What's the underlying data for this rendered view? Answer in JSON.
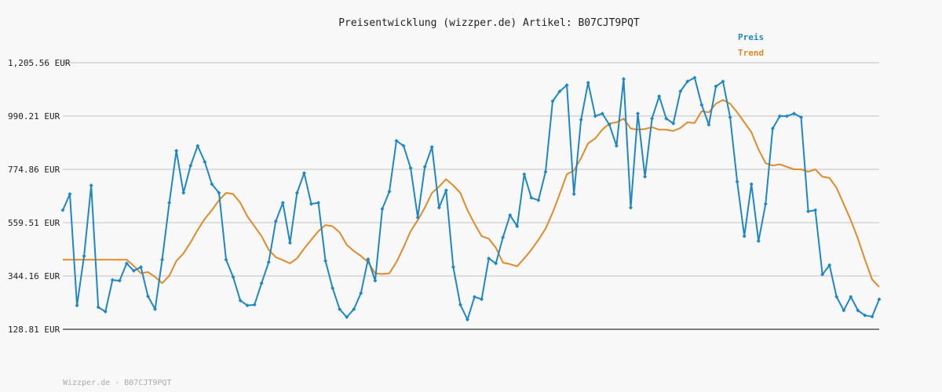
{
  "chart_data": {
    "type": "line",
    "title": "Preisentwicklung (wizzper.de) Artikel: B07CJT9PQT",
    "footer": "Wizzper.de - B07CJT9PQT",
    "ylim": [
      128.81,
      1205.56
    ],
    "y_ticks": [
      "1,205.56 EUR",
      "990.21 EUR",
      "774.86 EUR",
      "559.51 EUR",
      "344.16 EUR",
      "128.81 EUR"
    ],
    "y_tick_values": [
      1205.56,
      990.21,
      774.86,
      559.51,
      344.16,
      128.81
    ],
    "grid": true,
    "legend_position": "top-right",
    "colors": {
      "preis": "#1f87c4",
      "trend": "#e08b2a",
      "grid": "#dddddd",
      "axis": "#555555"
    },
    "series": [
      {
        "name": "Preis",
        "values": [
          610,
          675,
          225,
          425,
          710,
          218,
          200,
          328,
          325,
          395,
          365,
          380,
          262,
          210,
          410,
          640,
          850,
          680,
          790,
          870,
          805,
          715,
          680,
          410,
          340,
          245,
          225,
          228,
          315,
          400,
          565,
          640,
          478,
          680,
          760,
          635,
          640,
          405,
          295,
          210,
          178,
          210,
          275,
          412,
          325,
          615,
          685,
          890,
          870,
          780,
          580,
          785,
          865,
          620,
          690,
          380,
          228,
          168,
          260,
          250,
          415,
          395,
          500,
          590,
          545,
          755,
          660,
          650,
          765,
          1050,
          1090,
          1115,
          675,
          975,
          1125,
          990,
          1000,
          955,
          870,
          1140,
          620,
          1000,
          745,
          980,
          1070,
          980,
          960,
          1090,
          1130,
          1145,
          1035,
          955,
          1110,
          1130,
          985,
          725,
          505,
          715,
          485,
          635,
          940,
          990,
          990,
          1000,
          985,
          605,
          610,
          350,
          388,
          260,
          205,
          260,
          205,
          185,
          180,
          250
        ]
      },
      {
        "name": "Trend",
        "values": [
          410,
          410,
          410,
          410,
          410,
          410,
          410,
          410,
          410,
          410,
          385,
          355,
          360,
          340,
          315,
          345,
          405,
          435,
          480,
          530,
          575,
          610,
          650,
          680,
          675,
          640,
          585,
          545,
          505,
          450,
          420,
          408,
          395,
          415,
          455,
          490,
          525,
          550,
          545,
          520,
          470,
          445,
          425,
          400,
          355,
          352,
          355,
          400,
          460,
          525,
          570,
          620,
          680,
          705,
          735,
          710,
          680,
          610,
          555,
          505,
          495,
          458,
          398,
          392,
          383,
          415,
          450,
          490,
          535,
          600,
          675,
          755,
          770,
          820,
          880,
          900,
          935,
          960,
          965,
          980,
          940,
          935,
          938,
          945,
          935,
          935,
          930,
          942,
          965,
          962,
          1010,
          1005,
          1040,
          1055,
          1040,
          1005,
          965,
          925,
          855,
          800,
          790,
          795,
          785,
          775,
          775,
          765,
          775,
          745,
          740,
          700,
          635,
          570,
          495,
          410,
          330,
          300
        ]
      }
    ]
  }
}
